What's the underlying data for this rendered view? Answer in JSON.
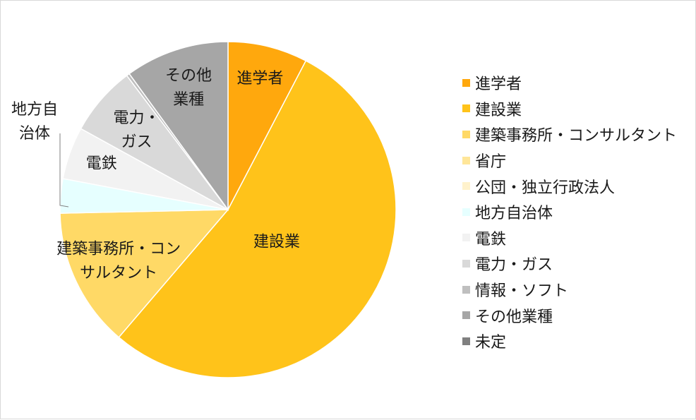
{
  "chart_data": {
    "type": "pie",
    "title": "",
    "legend_position": "right",
    "slices": [
      {
        "label": "進学者",
        "display_label": [
          "進学者"
        ],
        "value": 7.9,
        "color": "#FFA80D"
      },
      {
        "label": "建設業",
        "display_label": [
          "建設業"
        ],
        "value": 55.2,
        "color": "#FFC31A"
      },
      {
        "label": "建築事務所・コンサルタント",
        "display_label": [
          "建築事務所・コン",
          "サルタント"
        ],
        "value": 13.8,
        "color": "#FFD966"
      },
      {
        "label": "省庁",
        "display_label": [],
        "value": 0,
        "color": "#FFE699"
      },
      {
        "label": "公団・独立行政法人",
        "display_label": [],
        "value": 0,
        "color": "#FFF2CC"
      },
      {
        "label": "地方自治体",
        "display_label": [
          "地方自",
          "治体"
        ],
        "value": 3.4,
        "color": "#E6FFFF"
      },
      {
        "label": "電鉄",
        "display_label": [
          "電鉄"
        ],
        "value": 5.2,
        "color": "#F2F2F2"
      },
      {
        "label": "電力・ガス",
        "display_label": [
          "電力・",
          "ガス"
        ],
        "value": 6.9,
        "color": "#D9D9D9"
      },
      {
        "label": "情報・ソフト",
        "display_label": [],
        "value": 0.3,
        "color": "#BFBFBF"
      },
      {
        "label": "その他業種",
        "display_label": [
          "その他",
          "業種"
        ],
        "value": 10.3,
        "color": "#A6A6A6"
      },
      {
        "label": "未定",
        "display_label": [],
        "value": 0,
        "color": "#808080"
      }
    ]
  }
}
